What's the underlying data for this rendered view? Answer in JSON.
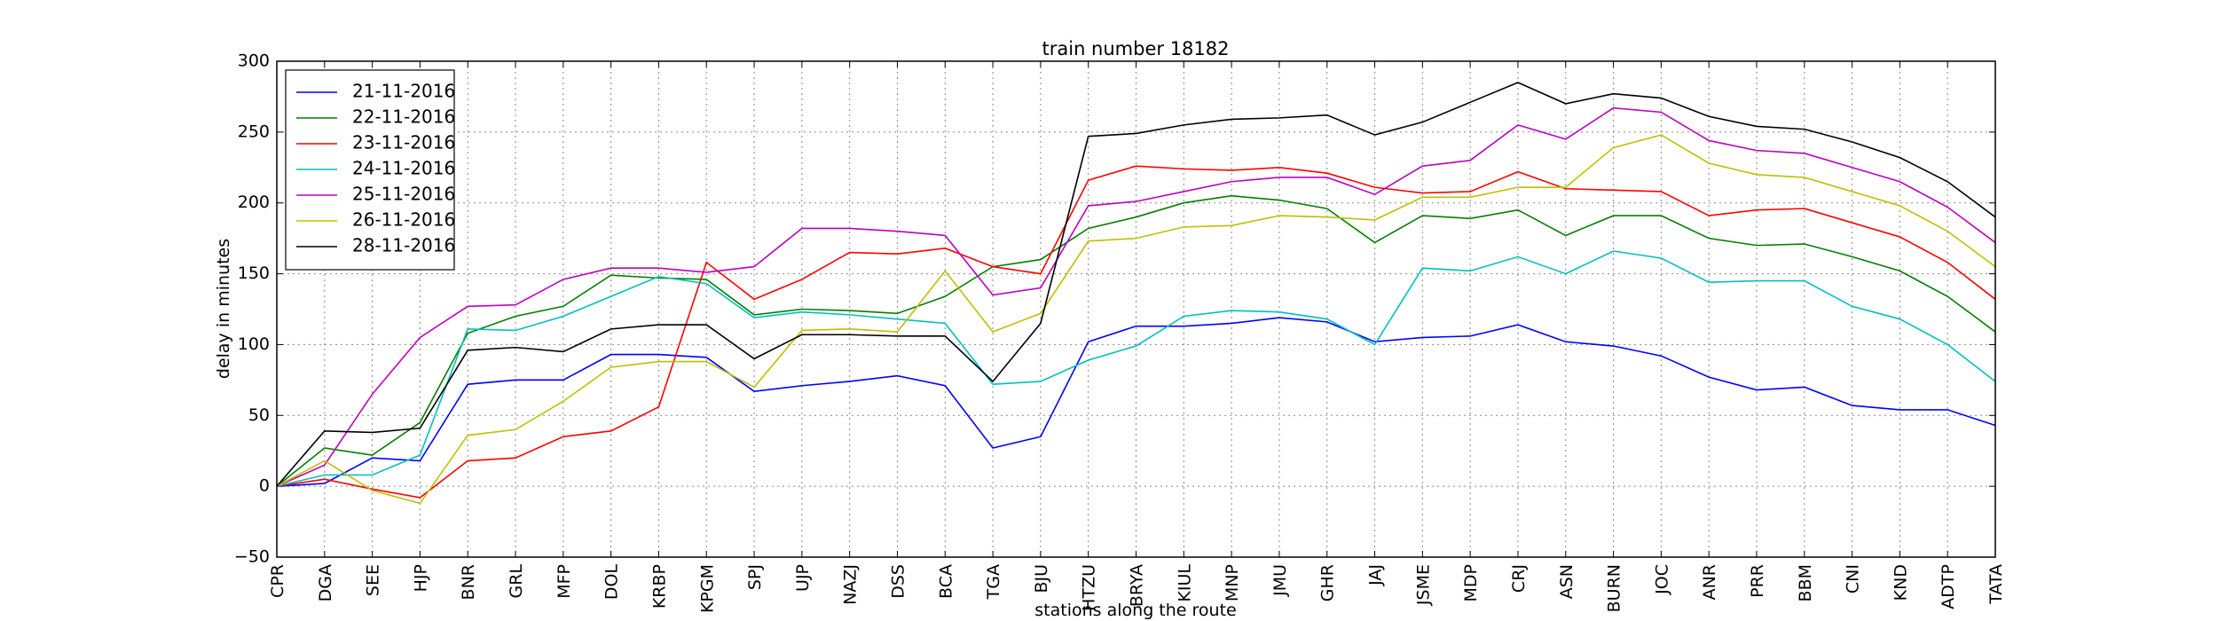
{
  "chart_data": {
    "type": "line",
    "title": "train number 18182",
    "x_label": "stations along the route",
    "y_label": "delay in minutes",
    "categories": [
      "CPR",
      "DGA",
      "SEE",
      "HJP",
      "BNR",
      "GRL",
      "MFP",
      "DOL",
      "KRBP",
      "KPGM",
      "SPJ",
      "UJP",
      "NAZJ",
      "DSS",
      "BCA",
      "TGA",
      "BJU",
      "HTZU",
      "BRYA",
      "KIUL",
      "MNP",
      "JMU",
      "GHR",
      "JAJ",
      "JSME",
      "MDP",
      "CRJ",
      "ASN",
      "BURN",
      "JOC",
      "ANR",
      "PRR",
      "BBM",
      "CNI",
      "KND",
      "ADTP",
      "TATA"
    ],
    "series": [
      {
        "name": "21-11-2016",
        "color": "#0000ff",
        "values": [
          0,
          2,
          20,
          18,
          72,
          75,
          75,
          93,
          93,
          91,
          67,
          71,
          74,
          78,
          71,
          27,
          35,
          102,
          113,
          113,
          115,
          119,
          116,
          102,
          105,
          106,
          114,
          102,
          99,
          92,
          77,
          68,
          70,
          57,
          54,
          54,
          43
        ]
      },
      {
        "name": "22-11-2016",
        "color": "#008000",
        "values": [
          0,
          27,
          22,
          45,
          108,
          120,
          127,
          149,
          147,
          146,
          121,
          125,
          124,
          122,
          134,
          155,
          160,
          182,
          190,
          200,
          205,
          202,
          196,
          172,
          191,
          189,
          195,
          177,
          191,
          191,
          175,
          170,
          171,
          162,
          152,
          134,
          109
        ]
      },
      {
        "name": "23-11-2016",
        "color": "#ff0000",
        "values": [
          0,
          5,
          -2,
          -8,
          18,
          20,
          35,
          39,
          56,
          158,
          132,
          146,
          165,
          164,
          168,
          155,
          150,
          216,
          226,
          224,
          223,
          225,
          221,
          211,
          207,
          208,
          222,
          210,
          209,
          208,
          191,
          195,
          196,
          186,
          176,
          158,
          132
        ]
      },
      {
        "name": "24-11-2016",
        "color": "#00bfbf",
        "values": [
          0,
          8,
          8,
          22,
          111,
          110,
          120,
          134,
          148,
          143,
          119,
          123,
          121,
          118,
          115,
          72,
          74,
          89,
          99,
          120,
          124,
          123,
          118,
          100,
          154,
          152,
          162,
          150,
          166,
          161,
          144,
          145,
          145,
          127,
          118,
          100,
          74
        ]
      },
      {
        "name": "25-11-2016",
        "color": "#bf00bf",
        "values": [
          0,
          15,
          65,
          105,
          127,
          128,
          146,
          154,
          154,
          151,
          155,
          182,
          182,
          180,
          177,
          135,
          140,
          198,
          201,
          208,
          215,
          218,
          218,
          206,
          226,
          230,
          255,
          245,
          267,
          264,
          244,
          237,
          235,
          225,
          215,
          197,
          172
        ]
      },
      {
        "name": "26-11-2016",
        "color": "#bfbf00",
        "values": [
          0,
          18,
          -3,
          -12,
          36,
          40,
          60,
          84,
          88,
          88,
          70,
          110,
          111,
          109,
          152,
          109,
          122,
          173,
          175,
          183,
          184,
          191,
          190,
          188,
          204,
          204,
          211,
          211,
          239,
          248,
          228,
          220,
          218,
          208,
          198,
          180,
          155
        ]
      },
      {
        "name": "28-11-2016",
        "color": "#000000",
        "values": [
          0,
          39,
          38,
          41,
          96,
          98,
          95,
          111,
          114,
          114,
          90,
          107,
          107,
          106,
          106,
          74,
          115,
          247,
          249,
          255,
          259,
          260,
          262,
          248,
          257,
          271,
          285,
          270,
          277,
          274,
          261,
          254,
          252,
          243,
          232,
          215,
          190
        ]
      }
    ],
    "ylim": [
      -50,
      300
    ],
    "yticks": [
      {
        "value": -50,
        "label": "−50"
      },
      0,
      50,
      100,
      150,
      200,
      250,
      300
    ],
    "grid": true,
    "legend": "upper left"
  }
}
